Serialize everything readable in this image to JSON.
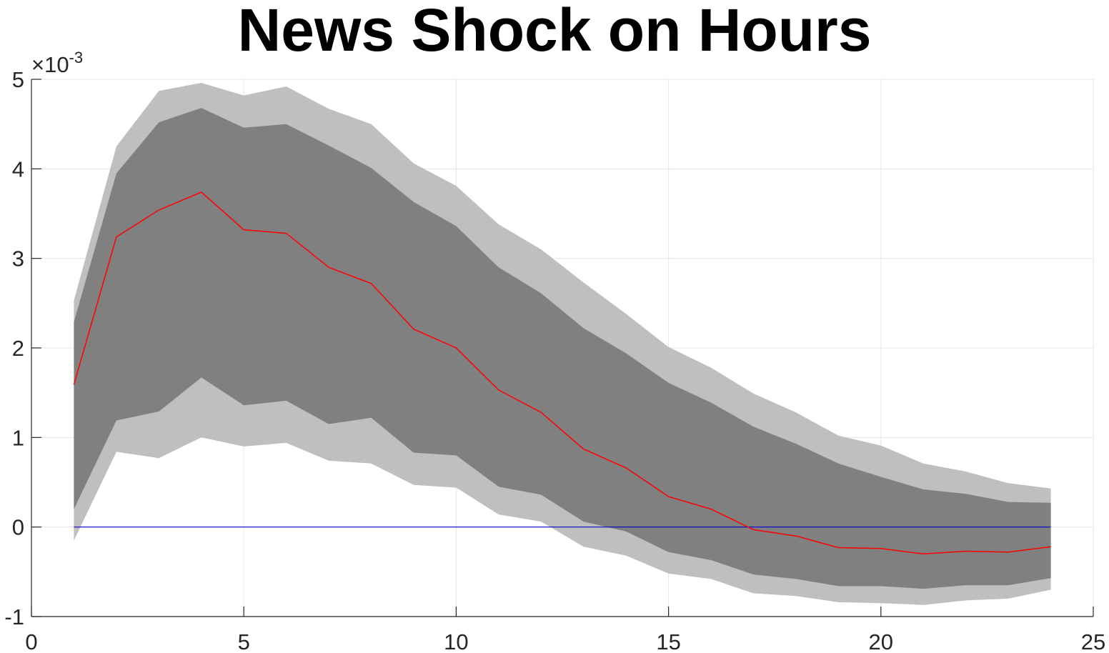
{
  "chart_data": {
    "type": "area",
    "title": "News Shock on Hours",
    "xlabel": "",
    "ylabel": "",
    "y_exponent_label": "×10",
    "y_exponent_power": "-3",
    "xlim": [
      0,
      25
    ],
    "ylim": [
      -1,
      5
    ],
    "xticks": [
      "0",
      "5",
      "10",
      "15",
      "20",
      "25"
    ],
    "yticks": [
      "-1",
      "0",
      "1",
      "2",
      "3",
      "4",
      "5"
    ],
    "grid": true,
    "legend": "none",
    "x": [
      1,
      2,
      3,
      4,
      5,
      6,
      7,
      8,
      9,
      10,
      11,
      12,
      13,
      14,
      15,
      16,
      17,
      18,
      19,
      20,
      21,
      22,
      23,
      24
    ],
    "series": [
      {
        "role": "outer_upper",
        "values": [
          2.53,
          4.25,
          4.87,
          4.96,
          4.82,
          4.92,
          4.67,
          4.5,
          4.06,
          3.81,
          3.38,
          3.1,
          2.73,
          2.38,
          2.01,
          1.78,
          1.49,
          1.28,
          1.02,
          0.91,
          0.71,
          0.62,
          0.49,
          0.43
        ]
      },
      {
        "role": "inner_upper",
        "values": [
          2.29,
          3.95,
          4.52,
          4.68,
          4.46,
          4.5,
          4.26,
          4.01,
          3.63,
          3.36,
          2.9,
          2.61,
          2.22,
          1.94,
          1.61,
          1.39,
          1.12,
          0.93,
          0.71,
          0.56,
          0.42,
          0.37,
          0.28,
          0.27
        ]
      },
      {
        "role": "median",
        "values": [
          1.59,
          3.24,
          3.54,
          3.74,
          3.32,
          3.28,
          2.9,
          2.72,
          2.21,
          2.0,
          1.53,
          1.28,
          0.87,
          0.66,
          0.34,
          0.2,
          -0.03,
          -0.1,
          -0.23,
          -0.24,
          -0.3,
          -0.27,
          -0.28,
          -0.22
        ]
      },
      {
        "role": "inner_lower",
        "values": [
          0.2,
          1.19,
          1.29,
          1.67,
          1.36,
          1.41,
          1.15,
          1.22,
          0.83,
          0.8,
          0.45,
          0.36,
          0.06,
          -0.05,
          -0.28,
          -0.37,
          -0.53,
          -0.58,
          -0.66,
          -0.66,
          -0.69,
          -0.65,
          -0.65,
          -0.57
        ]
      },
      {
        "role": "outer_lower",
        "values": [
          -0.15,
          0.84,
          0.77,
          1.0,
          0.9,
          0.94,
          0.74,
          0.71,
          0.47,
          0.44,
          0.14,
          0.06,
          -0.22,
          -0.32,
          -0.52,
          -0.58,
          -0.74,
          -0.77,
          -0.84,
          -0.85,
          -0.87,
          -0.82,
          -0.8,
          -0.7
        ]
      }
    ],
    "zero_line": 0,
    "colors": {
      "outer_band": "#bfbfbf",
      "inner_band": "#808080",
      "median": "#ff0000",
      "zero_line": "#0000cc",
      "grid": "#e6e6e6",
      "axis": "#262626"
    }
  }
}
